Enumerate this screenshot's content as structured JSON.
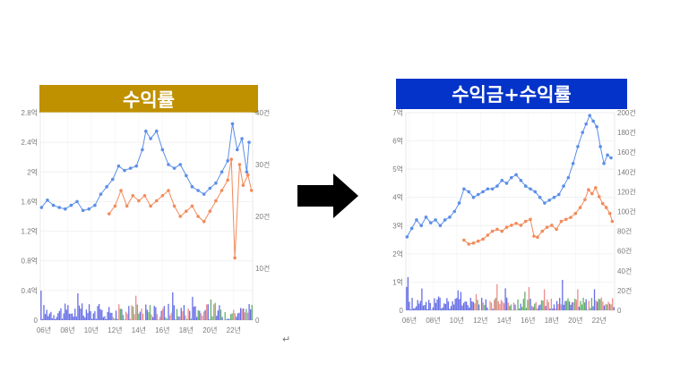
{
  "colors": {
    "left_banner": "#bf9000",
    "right_banner": "#0433c9",
    "blue_line": "#5b8fe8",
    "orange_line": "#f28b5b",
    "bar_blue": "#4b55e0",
    "bar_red": "#e8797a",
    "bar_green": "#4aa34f",
    "arrow": "#000000"
  },
  "left_title": "수익률",
  "right_title": "수익금+수익률",
  "return_mark": "↵",
  "arrow_icon": "right-arrow",
  "chart_data": [
    {
      "type": "line",
      "title": "수익률",
      "x_ticks": [
        "06년",
        "08년",
        "10년",
        "12년",
        "14년",
        "16년",
        "18년",
        "20년",
        "22년"
      ],
      "x_range": [
        2005.7,
        2023.6
      ],
      "y_left_ticks": [
        "0",
        "0.4억",
        "0.8억",
        "1.2억",
        "1.6억",
        "2억",
        "2.4억",
        "2.8억"
      ],
      "y_left_range": [
        0,
        2.8
      ],
      "y_right_ticks": [
        "0",
        "10건",
        "20건",
        "30건",
        "40건"
      ],
      "y_right_range": [
        0,
        40
      ],
      "grid": true,
      "series": [
        {
          "axis": "left",
          "color": "#5b8fe8",
          "points": [
            [
              2005.8,
              1.52
            ],
            [
              2006.3,
              1.62
            ],
            [
              2006.8,
              1.55
            ],
            [
              2007.3,
              1.52
            ],
            [
              2007.8,
              1.5
            ],
            [
              2008.3,
              1.55
            ],
            [
              2008.8,
              1.6
            ],
            [
              2009.3,
              1.48
            ],
            [
              2009.8,
              1.5
            ],
            [
              2010.3,
              1.55
            ],
            [
              2010.8,
              1.7
            ],
            [
              2011.3,
              1.8
            ],
            [
              2011.8,
              1.9
            ],
            [
              2012.3,
              2.08
            ],
            [
              2012.8,
              2.02
            ],
            [
              2013.3,
              2.05
            ],
            [
              2013.8,
              2.08
            ],
            [
              2014.3,
              2.3
            ],
            [
              2014.6,
              2.55
            ],
            [
              2015.0,
              2.45
            ],
            [
              2015.5,
              2.55
            ],
            [
              2016.0,
              2.3
            ],
            [
              2016.5,
              2.1
            ],
            [
              2017.0,
              2.05
            ],
            [
              2017.5,
              2.1
            ],
            [
              2018.0,
              1.95
            ],
            [
              2018.5,
              1.8
            ],
            [
              2019.0,
              1.75
            ],
            [
              2019.5,
              1.7
            ],
            [
              2020.0,
              1.78
            ],
            [
              2020.5,
              1.85
            ],
            [
              2021.0,
              2.0
            ],
            [
              2021.5,
              2.15
            ],
            [
              2021.9,
              2.65
            ],
            [
              2022.3,
              2.3
            ],
            [
              2022.7,
              2.45
            ],
            [
              2023.1,
              2.0
            ],
            [
              2023.3,
              2.4
            ]
          ]
        },
        {
          "axis": "right",
          "color": "#f28b5b",
          "points": [
            [
              2011.5,
              20.5
            ],
            [
              2012.0,
              22
            ],
            [
              2012.5,
              25
            ],
            [
              2013.0,
              22
            ],
            [
              2013.5,
              24
            ],
            [
              2014.0,
              23
            ],
            [
              2014.5,
              24
            ],
            [
              2015.0,
              22
            ],
            [
              2015.5,
              23
            ],
            [
              2016.0,
              24
            ],
            [
              2016.5,
              25
            ],
            [
              2017.0,
              22
            ],
            [
              2017.5,
              20
            ],
            [
              2018.0,
              21
            ],
            [
              2018.5,
              22
            ],
            [
              2019.0,
              20
            ],
            [
              2019.5,
              19
            ],
            [
              2020.0,
              21
            ],
            [
              2020.5,
              23
            ],
            [
              2021.0,
              25
            ],
            [
              2021.5,
              27
            ],
            [
              2021.8,
              31
            ],
            [
              2022.1,
              12
            ],
            [
              2022.5,
              30
            ],
            [
              2022.8,
              26
            ],
            [
              2023.2,
              28
            ],
            [
              2023.5,
              25
            ]
          ]
        }
      ]
    },
    {
      "type": "line",
      "title": "수익금+수익률",
      "x_ticks": [
        "06년",
        "08년",
        "10년",
        "12년",
        "14년",
        "16년",
        "18년",
        "20년",
        "22년"
      ],
      "x_range": [
        2005.7,
        2023.3
      ],
      "y_left_ticks": [
        "0",
        "1억",
        "2억",
        "3억",
        "4억",
        "5억",
        "6억",
        "7억"
      ],
      "y_left_range": [
        0,
        7
      ],
      "y_right_ticks": [
        "0",
        "20건",
        "40건",
        "60건",
        "80건",
        "100건",
        "120건",
        "140건",
        "160건",
        "180건",
        "200건"
      ],
      "y_right_range": [
        0,
        200
      ],
      "grid": true,
      "series": [
        {
          "axis": "left",
          "color": "#5b8fe8",
          "points": [
            [
              2005.8,
              2.6
            ],
            [
              2006.2,
              2.9
            ],
            [
              2006.6,
              3.2
            ],
            [
              2007.0,
              3.0
            ],
            [
              2007.4,
              3.3
            ],
            [
              2007.8,
              3.1
            ],
            [
              2008.2,
              3.2
            ],
            [
              2008.6,
              3.0
            ],
            [
              2009.0,
              3.2
            ],
            [
              2009.4,
              3.3
            ],
            [
              2009.8,
              3.5
            ],
            [
              2010.2,
              3.8
            ],
            [
              2010.6,
              4.3
            ],
            [
              2011.0,
              4.2
            ],
            [
              2011.4,
              4.0
            ],
            [
              2011.8,
              4.1
            ],
            [
              2012.2,
              4.2
            ],
            [
              2012.6,
              4.3
            ],
            [
              2013.0,
              4.3
            ],
            [
              2013.4,
              4.4
            ],
            [
              2013.8,
              4.6
            ],
            [
              2014.2,
              4.5
            ],
            [
              2014.6,
              4.7
            ],
            [
              2015.0,
              4.8
            ],
            [
              2015.4,
              4.6
            ],
            [
              2015.8,
              4.4
            ],
            [
              2016.2,
              4.3
            ],
            [
              2016.6,
              4.2
            ],
            [
              2017.0,
              4.0
            ],
            [
              2017.4,
              3.8
            ],
            [
              2017.8,
              3.9
            ],
            [
              2018.2,
              4.0
            ],
            [
              2018.6,
              4.1
            ],
            [
              2019.0,
              4.4
            ],
            [
              2019.4,
              4.7
            ],
            [
              2019.8,
              5.2
            ],
            [
              2020.2,
              5.8
            ],
            [
              2020.6,
              6.3
            ],
            [
              2020.9,
              6.6
            ],
            [
              2021.2,
              6.9
            ],
            [
              2021.5,
              6.7
            ],
            [
              2021.8,
              6.5
            ],
            [
              2022.1,
              5.8
            ],
            [
              2022.4,
              5.2
            ],
            [
              2022.7,
              5.5
            ],
            [
              2023.0,
              5.4
            ]
          ]
        },
        {
          "axis": "right",
          "color": "#f28b5b",
          "points": [
            [
              2010.6,
              71
            ],
            [
              2011.0,
              67
            ],
            [
              2011.4,
              68
            ],
            [
              2011.8,
              70
            ],
            [
              2012.2,
              72
            ],
            [
              2012.6,
              76
            ],
            [
              2013.0,
              80
            ],
            [
              2013.4,
              82
            ],
            [
              2013.8,
              80
            ],
            [
              2014.2,
              84
            ],
            [
              2014.6,
              86
            ],
            [
              2015.0,
              88
            ],
            [
              2015.4,
              86
            ],
            [
              2015.8,
              90
            ],
            [
              2016.2,
              92
            ],
            [
              2016.5,
              75
            ],
            [
              2016.8,
              74
            ],
            [
              2017.2,
              80
            ],
            [
              2017.6,
              84
            ],
            [
              2018.0,
              86
            ],
            [
              2018.4,
              82
            ],
            [
              2018.8,
              90
            ],
            [
              2019.2,
              92
            ],
            [
              2019.6,
              94
            ],
            [
              2020.0,
              98
            ],
            [
              2020.4,
              104
            ],
            [
              2020.8,
              112
            ],
            [
              2021.1,
              122
            ],
            [
              2021.4,
              118
            ],
            [
              2021.7,
              124
            ],
            [
              2022.0,
              115
            ],
            [
              2022.3,
              108
            ],
            [
              2022.6,
              104
            ],
            [
              2022.9,
              98
            ],
            [
              2023.1,
              90
            ]
          ]
        }
      ]
    }
  ]
}
